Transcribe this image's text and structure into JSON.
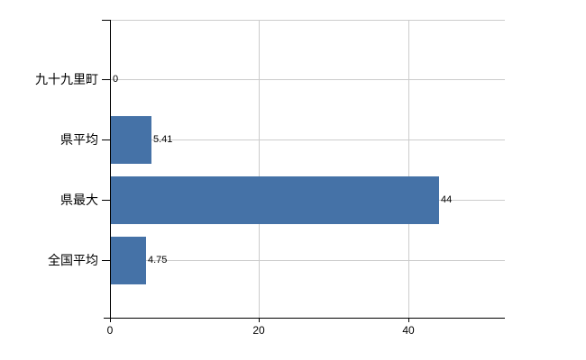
{
  "chart_data": {
    "type": "bar",
    "orientation": "horizontal",
    "title": "",
    "categories": [
      "九十九里町",
      "県平均",
      "県最大",
      "全国平均"
    ],
    "values": [
      0,
      5.41,
      44,
      4.75
    ],
    "value_labels": [
      "0",
      "5.41",
      "44",
      "4.75"
    ],
    "x_ticks": [
      0,
      20,
      40
    ],
    "x_tick_labels": [
      "0",
      "20",
      "40"
    ],
    "xlim": [
      0,
      53
    ],
    "grid": true,
    "legend": false,
    "bar_color": "#4572a7",
    "grid_color": "#cccccc",
    "axis_color": "#000000",
    "text_color": "#000000",
    "background_color": "#ffffff"
  }
}
